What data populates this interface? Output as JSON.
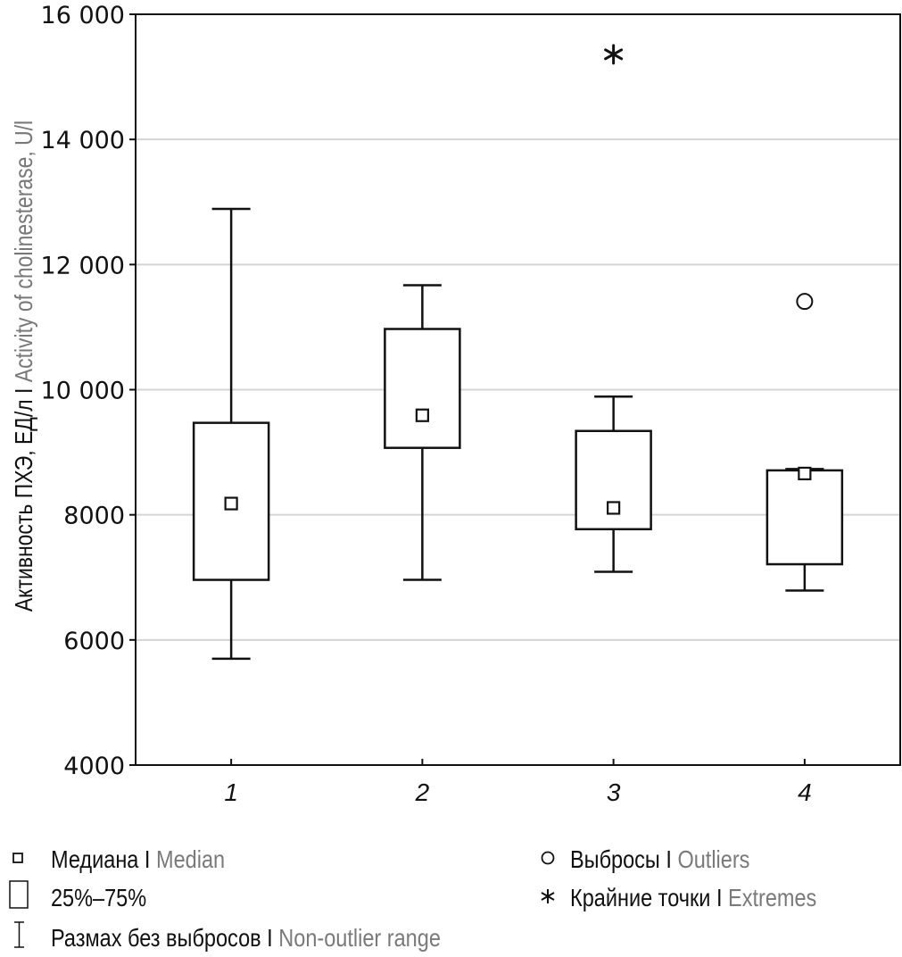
{
  "chart_data": {
    "type": "boxplot",
    "title": "",
    "xlabel": "",
    "ylabel": {
      "ru": "Активность ПХЭ, ЕД/л",
      "separator": "I",
      "en": "Activity of cholinesterase, U/l"
    },
    "ylim": [
      4000,
      16000
    ],
    "yticks": [
      4000,
      6000,
      8000,
      10000,
      12000,
      14000,
      16000
    ],
    "ytick_labels": [
      "4000",
      "6000",
      "8000",
      "10 000",
      "12 000",
      "14 000",
      "16 000"
    ],
    "grid": true,
    "categories": [
      "1",
      "2",
      "3",
      "4"
    ],
    "series": [
      {
        "name": "1",
        "median": 8180,
        "q1": 6960,
        "q3": 9470,
        "whisker_low": 5700,
        "whisker_high": 12890,
        "outliers": [],
        "extremes": []
      },
      {
        "name": "2",
        "median": 9590,
        "q1": 9070,
        "q3": 10970,
        "whisker_low": 6960,
        "whisker_high": 11670,
        "outliers": [],
        "extremes": []
      },
      {
        "name": "3",
        "median": 8110,
        "q1": 7770,
        "q3": 9340,
        "whisker_low": 7090,
        "whisker_high": 9890,
        "outliers": [],
        "extremes": [
          15360
        ]
      },
      {
        "name": "4",
        "median": 8660,
        "q1": 7210,
        "q3": 8710,
        "whisker_low": 6790,
        "whisker_high": 8730,
        "outliers": [
          11410
        ],
        "extremes": []
      }
    ],
    "legend": {
      "placement": "bottom",
      "items": [
        {
          "symbol": "median-square",
          "ru": "Медиана",
          "separator": "I",
          "en": "Median"
        },
        {
          "symbol": "box",
          "ru": "25%–75%",
          "separator": "",
          "en": ""
        },
        {
          "symbol": "whisker",
          "ru": "Размах без выбросов",
          "separator": "I",
          "en": "Non-outlier range"
        },
        {
          "symbol": "circle",
          "ru": "Выбросы",
          "separator": "I",
          "en": "Outliers"
        },
        {
          "symbol": "asterisk",
          "ru": "Крайние точки",
          "separator": "I",
          "en": "Extremes"
        }
      ]
    },
    "colors": {
      "ink": "#111111",
      "grid": "#d4d4d4",
      "english_text": "#7a7a7a"
    }
  }
}
